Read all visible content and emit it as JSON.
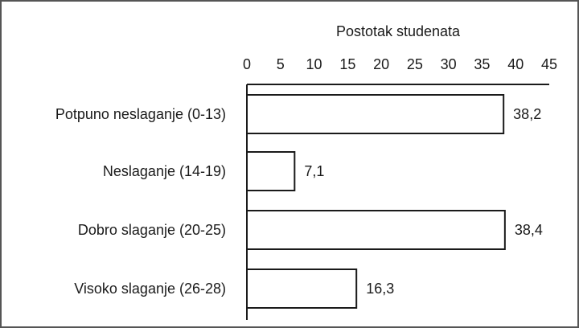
{
  "chart_data": {
    "type": "bar",
    "orientation": "horizontal",
    "title": "",
    "xlabel": "Postotak studenata",
    "ylabel": "",
    "xaxis_position": "top",
    "xlim": [
      0,
      45
    ],
    "ticks": [
      0,
      5,
      10,
      15,
      20,
      25,
      30,
      35,
      40,
      45
    ],
    "grid": false,
    "legend": "none",
    "categories": [
      "Potpuno neslaganje (0-13)",
      "Neslaganje (14-19)",
      "Dobro slaganje (20-25)",
      "Visoko slaganje (26-28)"
    ],
    "values": [
      38.2,
      7.1,
      38.4,
      16.3
    ],
    "value_labels": [
      "38,2",
      "7,1",
      "38,4",
      "16,3"
    ],
    "colors": {
      "bar_fill": "#ffffff",
      "bar_stroke": "#1a1a1a",
      "axis": "#1a1a1a",
      "frame": "#555555"
    }
  }
}
